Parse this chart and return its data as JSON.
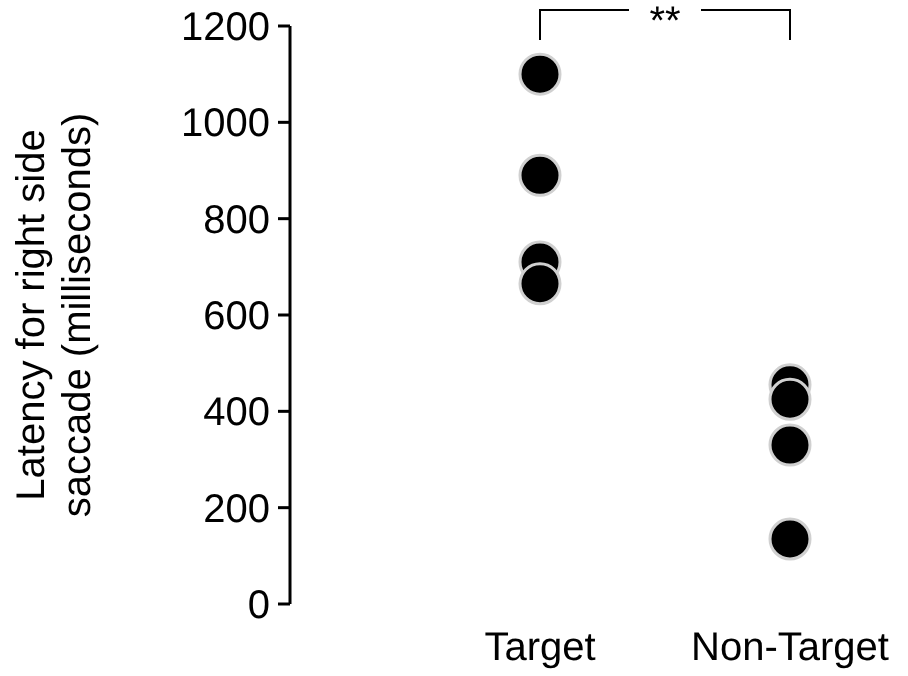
{
  "chart_data": {
    "type": "scatter",
    "ylabel": "Latency for right side saccade (milliseconds)",
    "categories": [
      "Target",
      "Non-Target"
    ],
    "series": [
      {
        "color": "#000000",
        "x": [
          "Target",
          "Target",
          "Target",
          "Target",
          "Non-Target",
          "Non-Target",
          "Non-Target",
          "Non-Target"
        ],
        "values": [
          1100,
          890,
          710,
          665,
          455,
          425,
          330,
          135
        ]
      }
    ],
    "ylim": [
      0,
      1200
    ],
    "yticks": [
      0,
      200,
      400,
      600,
      800,
      1000,
      1200
    ],
    "marker": "circle",
    "grid": false,
    "annotations": [
      "**"
    ]
  }
}
